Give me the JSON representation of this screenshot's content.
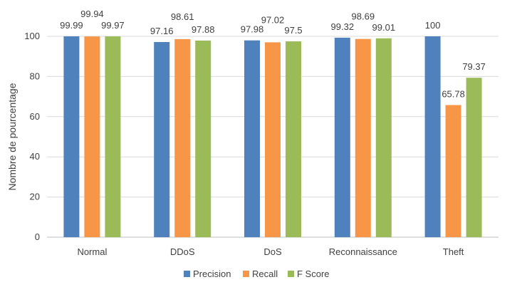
{
  "chart_data": {
    "type": "bar",
    "title": "",
    "xlabel": "",
    "ylabel": "Nombre de pourcentage",
    "ylim": [
      0,
      100
    ],
    "yticks": [
      0,
      20,
      40,
      60,
      80,
      100
    ],
    "grid": true,
    "legend_position": "bottom",
    "categories": [
      "Normal",
      "DDoS",
      "DoS",
      "Reconnaissance",
      "Theft"
    ],
    "series": [
      {
        "name": "Precision",
        "color": "#4f81bd",
        "values": [
          99.99,
          97.16,
          97.98,
          99.32,
          100
        ]
      },
      {
        "name": "Recall",
        "color": "#f79646",
        "values": [
          99.94,
          98.61,
          97.02,
          98.69,
          65.78
        ]
      },
      {
        "name": "F Score",
        "color": "#9bbb59",
        "values": [
          99.97,
          97.88,
          97.5,
          99.01,
          79.37
        ]
      }
    ]
  }
}
